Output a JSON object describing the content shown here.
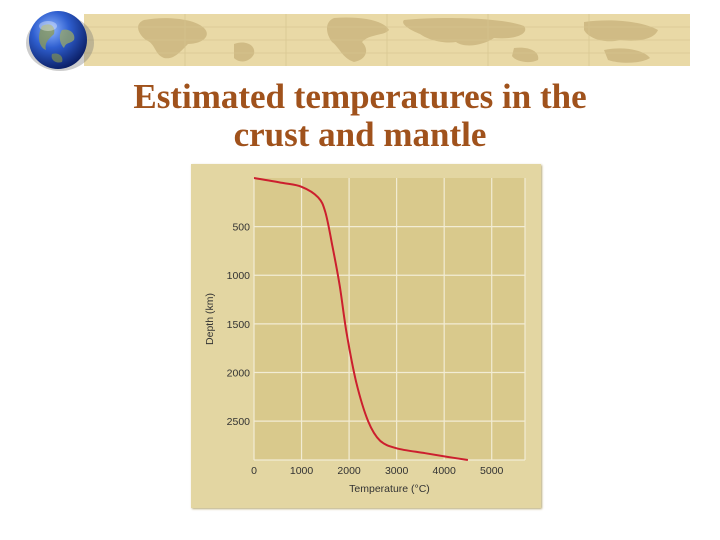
{
  "slide": {
    "title_line1": "Estimated temperatures in the",
    "title_line2": "crust and mantle"
  },
  "colors": {
    "title": "#a0521c",
    "plot_background": "#d9c98c",
    "panel_background": "#e3d6a2",
    "curve": "#cc1f2e",
    "grid": "#f2ecd4"
  },
  "chart_data": {
    "type": "line",
    "xlabel": "Temperature (°C)",
    "ylabel": "Depth (km)",
    "xlim": [
      0,
      5700
    ],
    "ylim": [
      0,
      2900
    ],
    "y_inverted": true,
    "grid": true,
    "x_ticks": [
      0,
      1000,
      2000,
      3000,
      4000,
      5000
    ],
    "y_ticks": [
      500,
      1000,
      1500,
      2000,
      2500
    ],
    "x_tick_labels": [
      "0",
      "1000",
      "2000",
      "3000",
      "4000",
      "5000"
    ],
    "y_tick_labels": [
      "500",
      "1000",
      "1500",
      "2000",
      "2500"
    ],
    "series": [
      {
        "points": [
          [
            0,
            0
          ],
          [
            600,
            50
          ],
          [
            1000,
            90
          ],
          [
            1350,
            200
          ],
          [
            1500,
            350
          ],
          [
            1650,
            700
          ],
          [
            1800,
            1100
          ],
          [
            1950,
            1600
          ],
          [
            2150,
            2100
          ],
          [
            2400,
            2500
          ],
          [
            2650,
            2700
          ],
          [
            3000,
            2780
          ],
          [
            3600,
            2830
          ],
          [
            4100,
            2870
          ],
          [
            4500,
            2900
          ]
        ]
      }
    ]
  }
}
